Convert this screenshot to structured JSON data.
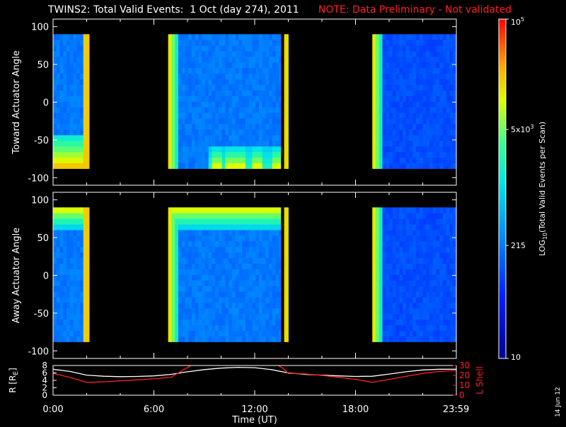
{
  "header": {
    "title": "TWINS2: Total Valid Events:  1 Oct (day 274), 2011",
    "note": "NOTE: Data Preliminary - Not validated"
  },
  "footer": {
    "date_stamp": "14 Jun 12"
  },
  "chart_data": [
    {
      "type": "heatmap",
      "ylabel": "Toward Actuator Angle",
      "ylim": [
        -110,
        110
      ],
      "yticks": [
        -100,
        -50,
        0,
        50,
        100
      ],
      "xlim": [
        0,
        24
      ],
      "bins": {
        "y": [
          -88,
          90
        ]
      },
      "data_intervals_h": [
        [
          0.0,
          2.15
        ],
        [
          6.85,
          13.55
        ],
        [
          13.75,
          14.0
        ],
        [
          19.0,
          23.98
        ]
      ],
      "low_angle_enhancement_h": [
        [
          0.0,
          2.15,
          "strong"
        ],
        [
          9.3,
          13.55,
          "patchy"
        ]
      ]
    },
    {
      "type": "heatmap",
      "ylabel": "Away Actuator Angle",
      "ylim": [
        -110,
        110
      ],
      "yticks": [
        -100,
        -50,
        0,
        50,
        100
      ],
      "xlim": [
        0,
        24
      ],
      "bins": {
        "y": [
          -88,
          90
        ]
      },
      "data_intervals_h": [
        [
          0.0,
          2.15
        ],
        [
          6.85,
          13.55
        ],
        [
          13.75,
          14.0
        ],
        [
          19.0,
          23.98
        ]
      ],
      "high_angle_enhancement_h": [
        [
          0.0,
          2.15
        ],
        [
          6.85,
          13.55
        ]
      ]
    },
    {
      "type": "line",
      "ylabel_left": "R [R",
      "ylabel_left_sub": "E",
      "ylabel_right": "L Shell",
      "ylim_left": [
        0,
        8
      ],
      "yticks_left": [
        0,
        2,
        4,
        6,
        8
      ],
      "ylim_right": [
        0,
        30
      ],
      "yticks_right": [
        0,
        10,
        20,
        30
      ],
      "xlabel": "Time (UT)",
      "xlim": [
        0,
        24
      ],
      "xtick_values": [
        0,
        6,
        12,
        18,
        23.983
      ],
      "xtick_labels": [
        "0:00",
        "6:00",
        "12:00",
        "18:00",
        "23:59"
      ],
      "series": [
        {
          "axis": "left",
          "color": "#ffffff",
          "points": [
            [
              0,
              7
            ],
            [
              1,
              6.4
            ],
            [
              2,
              5.4
            ],
            [
              3,
              5.1
            ],
            [
              4,
              5.0
            ],
            [
              5,
              5.05
            ],
            [
              6,
              5.2
            ],
            [
              7,
              5.6
            ],
            [
              8,
              6.3
            ],
            [
              9,
              6.9
            ],
            [
              10,
              7.3
            ],
            [
              11,
              7.5
            ],
            [
              12,
              7.4
            ],
            [
              13,
              6.9
            ],
            [
              14,
              6.0
            ],
            [
              15,
              5.6
            ],
            [
              16,
              5.4
            ],
            [
              17,
              5.2
            ],
            [
              18,
              5.05
            ],
            [
              19,
              5.1
            ],
            [
              20,
              5.7
            ],
            [
              21,
              6.3
            ],
            [
              22,
              6.8
            ],
            [
              23,
              7.0
            ],
            [
              24,
              7.0
            ]
          ]
        },
        {
          "axis": "right",
          "color": "#ff2020",
          "points": [
            [
              0,
              22
            ],
            [
              1,
              18
            ],
            [
              2,
              13
            ],
            [
              3,
              13.5
            ],
            [
              4,
              14.5
            ],
            [
              5,
              15.5
            ],
            [
              6,
              16.5
            ],
            [
              7,
              18
            ],
            [
              7.6,
              24
            ],
            [
              8,
              28
            ],
            [
              8.3,
              31
            ],
            null,
            [
              13.3,
              31
            ],
            [
              13.7,
              27
            ],
            [
              14,
              22
            ],
            [
              15,
              21.5
            ],
            [
              16,
              20
            ],
            [
              17,
              18
            ],
            [
              18,
              16
            ],
            [
              19,
              13
            ],
            [
              20,
              16
            ],
            [
              21,
              19
            ],
            [
              22,
              22
            ],
            [
              23,
              24
            ],
            [
              24,
              25
            ]
          ]
        }
      ]
    }
  ],
  "colorbar": {
    "tick_labels": [
      "10",
      "215",
      "5x10",
      "10"
    ],
    "tick_sups": [
      "",
      "",
      "3",
      "5"
    ],
    "label_pre": "LOG",
    "label_sub": "10",
    "label_post": "(Total Valid Events per Scan)"
  }
}
